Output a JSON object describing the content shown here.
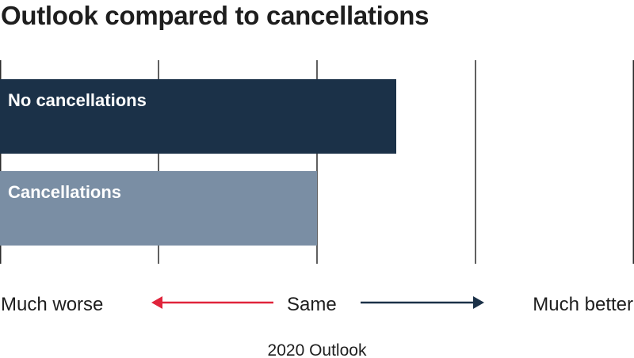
{
  "title": "Outlook compared to cancellations",
  "colors": {
    "no_cancellations": "#1b3148",
    "cancellations": "#7a8ea4",
    "worse_arrow": "#e0243b",
    "better_arrow": "#1b3148",
    "grid": "#2b2b2b",
    "text": "#1e1e1e"
  },
  "chart_data": {
    "type": "bar",
    "orientation": "horizontal",
    "title": "Outlook compared to cancellations",
    "categories": [
      "No cancellations",
      "Cancellations"
    ],
    "values": [
      2.5,
      2.0
    ],
    "xlim": [
      0,
      4
    ],
    "xlabel": "2020 Outlook",
    "ylabel": "",
    "grid": true,
    "scale_labels": [
      "Much worse",
      "Same",
      "Much better"
    ],
    "scale_label_values": [
      0,
      2,
      4
    ]
  }
}
